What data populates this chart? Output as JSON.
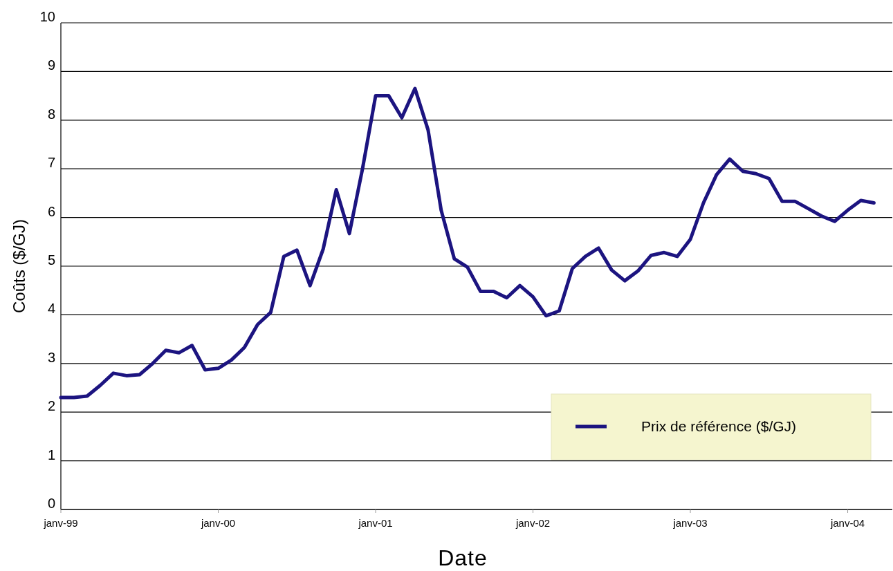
{
  "chart_data": {
    "type": "line",
    "xlabel": "Date",
    "ylabel": "Coûts ($/GJ)",
    "categories": [
      "janv-99",
      null,
      null,
      null,
      null,
      null,
      null,
      null,
      null,
      null,
      null,
      null,
      "janv-00",
      null,
      null,
      null,
      null,
      null,
      null,
      null,
      null,
      null,
      null,
      null,
      "janv-01",
      null,
      null,
      null,
      null,
      null,
      null,
      null,
      null,
      null,
      null,
      null,
      "janv-02",
      null,
      null,
      null,
      null,
      null,
      null,
      null,
      null,
      null,
      null,
      null,
      "janv-03",
      null,
      null,
      null,
      null,
      null,
      null,
      null,
      null,
      null,
      null,
      null,
      "janv-04",
      null,
      null
    ],
    "series": [
      {
        "name": "Prix de référence ($/GJ)",
        "color": "#1c1480",
        "values": [
          2.3,
          2.3,
          2.33,
          2.55,
          2.8,
          2.75,
          2.77,
          3.0,
          3.27,
          3.22,
          3.37,
          2.87,
          2.9,
          3.07,
          3.33,
          3.8,
          4.05,
          5.2,
          5.33,
          4.6,
          5.35,
          6.57,
          5.67,
          7.0,
          8.5,
          8.5,
          8.05,
          8.65,
          7.8,
          6.15,
          5.15,
          4.98,
          4.48,
          4.48,
          4.35,
          4.6,
          4.37,
          3.98,
          4.08,
          4.95,
          5.2,
          5.37,
          4.92,
          4.7,
          4.9,
          5.22,
          5.28,
          5.2,
          5.55,
          6.3,
          6.88,
          7.2,
          6.95,
          6.9,
          6.8,
          6.33,
          6.33,
          6.18,
          6.03,
          5.92,
          6.15,
          6.35,
          6.3
        ]
      }
    ],
    "ylim": [
      0,
      10
    ],
    "yticks": [
      0,
      1,
      2,
      3,
      4,
      5,
      6,
      7,
      8,
      9,
      10
    ],
    "grid": "y",
    "legend": "bottom right",
    "marker": "none",
    "line_style": "solid"
  }
}
